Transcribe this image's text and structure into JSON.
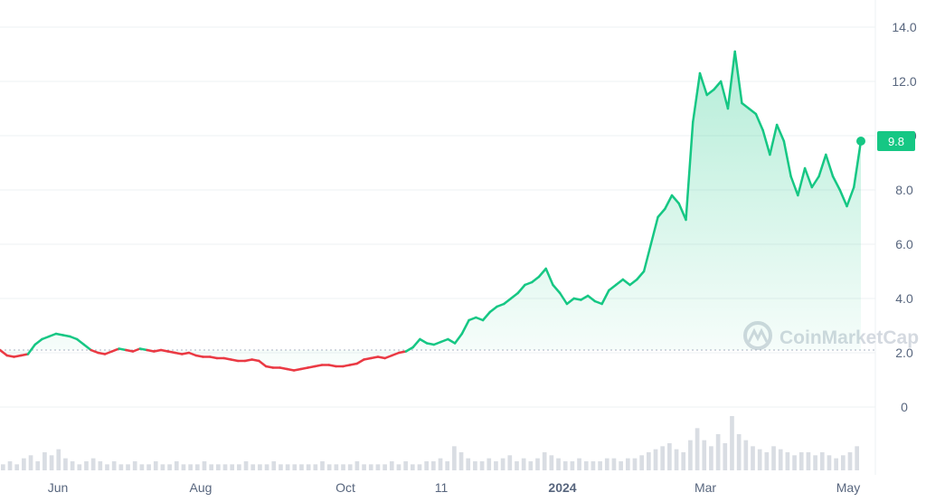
{
  "chart_data": {
    "type": "line",
    "brand": "CoinMarketCap",
    "y_ticks": [
      "14.0",
      "12.0",
      "10.0",
      "8.0",
      "6.0",
      "4.0",
      "2.0",
      "0"
    ],
    "y_tick_values": [
      14,
      12,
      10,
      8,
      6,
      4,
      2,
      0
    ],
    "x_ticks": [
      {
        "label": "Jun",
        "bold": false
      },
      {
        "label": "Aug",
        "bold": false
      },
      {
        "label": "Oct",
        "bold": false
      },
      {
        "label": "11",
        "bold": false
      },
      {
        "label": "2024",
        "bold": true
      },
      {
        "label": "Mar",
        "bold": false
      },
      {
        "label": "May",
        "bold": false
      }
    ],
    "reference_value": 2.1,
    "last_price": "9.8",
    "last_value": 9.8,
    "ylim": [
      0,
      14.6
    ],
    "grid": true,
    "colors": {
      "up": "#16c784",
      "down": "#ea3943",
      "grid": "#eef0f3",
      "axis_text": "#58667e",
      "volume": "#d9dde3"
    },
    "series": [
      {
        "values": [
          2.1,
          1.9,
          1.85,
          1.9,
          1.95,
          2.3,
          2.5,
          2.6,
          2.7,
          2.65,
          2.6,
          2.5,
          2.3,
          2.1,
          2.0,
          1.95,
          2.05,
          2.15,
          2.1,
          2.05,
          2.15,
          2.1,
          2.05,
          2.1,
          2.05,
          2.0,
          1.95,
          2.0,
          1.9,
          1.85,
          1.85,
          1.8,
          1.8,
          1.75,
          1.7,
          1.7,
          1.75,
          1.7,
          1.5,
          1.45,
          1.45,
          1.4,
          1.35,
          1.4,
          1.45,
          1.5,
          1.55,
          1.55,
          1.5,
          1.5,
          1.55,
          1.6,
          1.75,
          1.8,
          1.85,
          1.8,
          1.9,
          2.0,
          2.05,
          2.2,
          2.5,
          2.35,
          2.3,
          2.4,
          2.5,
          2.35,
          2.7,
          3.2,
          3.3,
          3.2,
          3.5,
          3.7,
          3.8,
          4.0,
          4.2,
          4.5,
          4.6,
          4.8,
          5.1,
          4.5,
          4.2,
          3.8,
          4.0,
          3.95,
          4.1,
          3.9,
          3.8,
          4.3,
          4.5,
          4.7,
          4.5,
          4.7,
          5.0,
          6.0,
          7.0,
          7.3,
          7.8,
          7.5,
          6.9,
          10.5,
          12.3,
          11.5,
          11.7,
          12.0,
          11.0,
          13.1,
          11.2,
          11.0,
          10.8,
          10.2,
          9.3,
          10.4,
          9.8,
          8.5,
          7.8,
          8.8,
          8.1,
          8.5,
          9.3,
          8.5,
          8.0,
          7.4,
          8.1,
          9.8
        ]
      }
    ],
    "volume": [
      2,
      3,
      2,
      4,
      5,
      3,
      6,
      5,
      7,
      4,
      3,
      2,
      3,
      4,
      3,
      2,
      3,
      2,
      2,
      3,
      2,
      2,
      3,
      2,
      2,
      3,
      2,
      2,
      2,
      3,
      2,
      2,
      2,
      2,
      2,
      3,
      2,
      2,
      2,
      3,
      2,
      2,
      2,
      2,
      2,
      2,
      3,
      2,
      2,
      2,
      2,
      3,
      2,
      2,
      2,
      2,
      3,
      2,
      3,
      2,
      2,
      3,
      3,
      4,
      3,
      8,
      6,
      4,
      3,
      3,
      4,
      3,
      4,
      5,
      3,
      4,
      3,
      4,
      6,
      5,
      4,
      3,
      3,
      4,
      3,
      3,
      3,
      4,
      4,
      3,
      4,
      4,
      5,
      6,
      7,
      8,
      9,
      7,
      6,
      10,
      14,
      10,
      8,
      12,
      9,
      18,
      12,
      10,
      8,
      7,
      6,
      8,
      7,
      6,
      5,
      6,
      6,
      5,
      6,
      5,
      4,
      5,
      6,
      8
    ]
  }
}
